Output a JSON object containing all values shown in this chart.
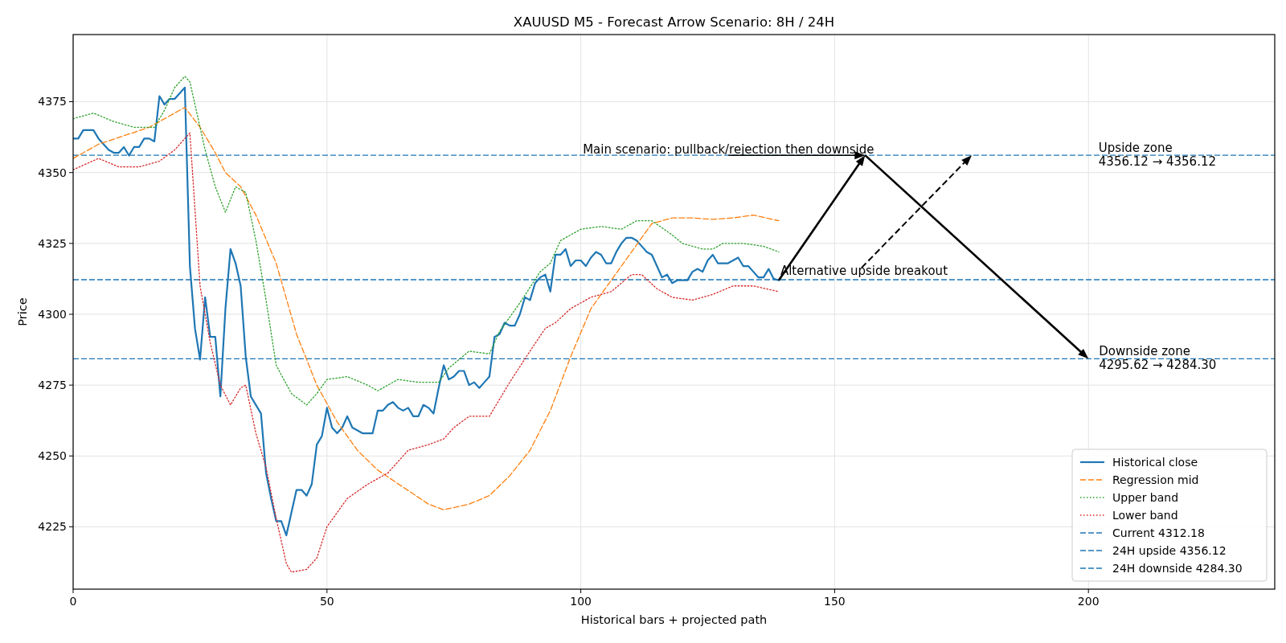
{
  "chart_data": {
    "type": "line",
    "title": "XAUUSD M5 - Forecast Arrow Scenario: 8H / 24H",
    "xlabel": "Historical bars + projected path",
    "ylabel": "Price",
    "xlim": [
      0,
      236.7
    ],
    "xticks": [
      0,
      50,
      100,
      150,
      200
    ],
    "ylim": [
      4203.0,
      4398.7
    ],
    "yticks": [
      4225,
      4250,
      4275,
      4300,
      4325,
      4350,
      4375
    ],
    "grid": true,
    "legend": "bottom right",
    "series": [
      {
        "name": "Historical close",
        "color": "#1f77b4",
        "line_style": "solid",
        "x": [
          0,
          1,
          2,
          3,
          4,
          5,
          6,
          7,
          8,
          9,
          10,
          11,
          12,
          13,
          14,
          15,
          16,
          17,
          18,
          19,
          20,
          21,
          22,
          23,
          24,
          25,
          26,
          27,
          28,
          29,
          30,
          31,
          32,
          33,
          34,
          35,
          36,
          37,
          38,
          39,
          40,
          41,
          42,
          43,
          44,
          45,
          46,
          47,
          48,
          49,
          50,
          51,
          52,
          53,
          54,
          55,
          56,
          57,
          58,
          59,
          60,
          61,
          62,
          63,
          64,
          65,
          66,
          67,
          68,
          69,
          70,
          71,
          72,
          73,
          74,
          75,
          76,
          77,
          78,
          79,
          80,
          81,
          82,
          83,
          84,
          85,
          86,
          87,
          88,
          89,
          90,
          91,
          92,
          93,
          94,
          95,
          96,
          97,
          98,
          99,
          100,
          101,
          102,
          103,
          104,
          105,
          106,
          107,
          108,
          109,
          110,
          111,
          112,
          113,
          114,
          115,
          116,
          117,
          118,
          119,
          120,
          121,
          122,
          123,
          124,
          125,
          126,
          127,
          128,
          129,
          130,
          131,
          132,
          133,
          134,
          135,
          136,
          137,
          138,
          139
        ],
        "values": [
          4362,
          4362,
          4365,
          4365,
          4365,
          4362,
          4360,
          4358,
          4357,
          4357,
          4359,
          4356,
          4359,
          4359,
          4362,
          4362,
          4361,
          4377,
          4374,
          4376,
          4376,
          4378,
          4380,
          4317,
          4295,
          4284,
          4306,
          4292,
          4292,
          4271,
          4302,
          4323,
          4318,
          4310,
          4285,
          4271,
          4268,
          4265,
          4244,
          4235,
          4227,
          4227,
          4222,
          4230,
          4238,
          4238,
          4236,
          4240,
          4254,
          4257,
          4267,
          4260,
          4258,
          4260,
          4264,
          4260,
          4259,
          4258,
          4258,
          4258,
          4266,
          4266,
          4268,
          4269,
          4267,
          4266,
          4267,
          4264,
          4264,
          4268,
          4267,
          4265,
          4274,
          4282,
          4277,
          4278,
          4280,
          4280,
          4275,
          4276,
          4274,
          4276,
          4278,
          4292,
          4293,
          4297,
          4296,
          4296,
          4300,
          4306,
          4305,
          4311,
          4313,
          4314,
          4308,
          4321,
          4321,
          4323,
          4317,
          4319,
          4319,
          4317,
          4320,
          4322,
          4321,
          4318,
          4318,
          4322,
          4325,
          4327,
          4327,
          4326,
          4324,
          4322,
          4321,
          4317,
          4313,
          4314,
          4311,
          4312,
          4312,
          4312,
          4315,
          4316,
          4315,
          4319,
          4321,
          4318,
          4318,
          4318,
          4319,
          4320,
          4317,
          4317,
          4315,
          4313,
          4313,
          4316,
          4312.5,
          4312
        ]
      },
      {
        "name": "Regression mid",
        "color": "#ff7f0e",
        "line_style": "dashed",
        "x": [
          0,
          5,
          10,
          15,
          20,
          22,
          25,
          28,
          30,
          33,
          36,
          40,
          44,
          48,
          52,
          56,
          60,
          65,
          70,
          73,
          78,
          82,
          86,
          90,
          94,
          98,
          102,
          106,
          110,
          114,
          118,
          122,
          126,
          130,
          134,
          139
        ],
        "values": [
          4355,
          4360,
          4363,
          4366,
          4371,
          4373,
          4366,
          4357,
          4350,
          4345,
          4335,
          4318,
          4293,
          4275,
          4262,
          4252,
          4245,
          4239,
          4233,
          4231,
          4233,
          4236,
          4243,
          4252,
          4266,
          4285,
          4302,
          4312,
          4322,
          4332,
          4334,
          4334,
          4333.5,
          4334,
          4335,
          4333
        ]
      },
      {
        "name": "Upper band",
        "color": "#2ca02c",
        "line_style": "dotted",
        "x": [
          0,
          4,
          8,
          12,
          16,
          18,
          20,
          22,
          23,
          26,
          28,
          30,
          32,
          34,
          36,
          38,
          40,
          43,
          46,
          48,
          50,
          54,
          58,
          60,
          64,
          68,
          72,
          74,
          78,
          82,
          84,
          88,
          92,
          94,
          96,
          100,
          104,
          108,
          111,
          114,
          118,
          120,
          124,
          126,
          128,
          132,
          136,
          139
        ],
        "values": [
          4369,
          4371,
          4368,
          4366,
          4366,
          4372,
          4380,
          4384,
          4382,
          4358,
          4345,
          4336,
          4345,
          4343,
          4326,
          4305,
          4282,
          4272,
          4268,
          4272,
          4277,
          4278,
          4275,
          4273,
          4277,
          4276,
          4276,
          4281,
          4287,
          4286,
          4294,
          4304,
          4315,
          4318,
          4326,
          4330,
          4331,
          4330,
          4333,
          4333,
          4328,
          4325,
          4323,
          4323,
          4325,
          4325,
          4324,
          4322
        ]
      },
      {
        "name": "Lower band",
        "color": "#d62728",
        "line_style": "dotted",
        "x": [
          0,
          5,
          9,
          13,
          17,
          20,
          23,
          25,
          27,
          29,
          31,
          33,
          34,
          36,
          38,
          40,
          42,
          43,
          46,
          48,
          50,
          54,
          58,
          62,
          64,
          66,
          70,
          73,
          75,
          78,
          82,
          86,
          90,
          93,
          95,
          98,
          102,
          106,
          110,
          112,
          115,
          118,
          122,
          126,
          130,
          134,
          139
        ],
        "values": [
          4351,
          4355,
          4352,
          4352,
          4354,
          4358,
          4364,
          4310,
          4290,
          4275,
          4268,
          4274,
          4275,
          4258,
          4246,
          4228,
          4212,
          4209,
          4210,
          4214,
          4225,
          4235,
          4240,
          4244,
          4248,
          4252,
          4254,
          4256,
          4260,
          4264,
          4264,
          4276,
          4287,
          4295,
          4297,
          4302,
          4306,
          4308,
          4314,
          4314,
          4309,
          4306,
          4305,
          4307,
          4310,
          4310,
          4308
        ]
      }
    ],
    "ref_lines": [
      {
        "axis": "y",
        "value": 4312.18,
        "label": "Current 4312.18",
        "color": "#1f77b4",
        "line_style": "dashed"
      },
      {
        "axis": "y",
        "value": 4356.12,
        "label": "24H upside 4356.12",
        "color": "#1f77b4",
        "line_style": "dashed"
      },
      {
        "axis": "y",
        "value": 4284.3,
        "label": "24H downside 4284.30",
        "color": "#1f77b4",
        "line_style": "dashed"
      }
    ],
    "annotations": [
      {
        "text": "Main scenario: pullback/rejection then downside",
        "x": 156,
        "y": 4356.12
      },
      {
        "text": "Alternative upside breakout",
        "x": 177,
        "y": 4356.12
      },
      {
        "text": "Upside zone\n4356.12 → 4356.12",
        "x": 202,
        "y": 4356.12
      },
      {
        "text": "Downside zone\n4295.62 → 4284.30",
        "x": 200,
        "y": 4284.3
      }
    ]
  }
}
